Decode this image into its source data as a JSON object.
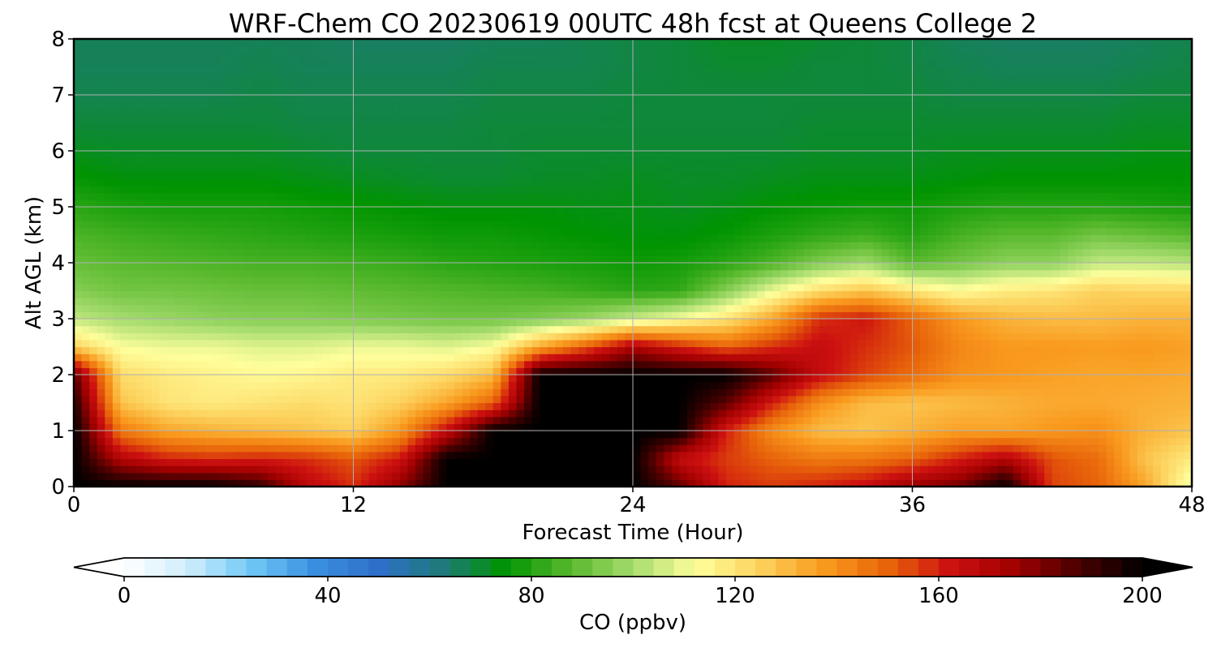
{
  "chart_data": {
    "type": "heatmap",
    "title": "WRF-Chem CO  20230619 00UTC 48h fcst at Queens College 2",
    "xlabel": "Forecast Time (Hour)",
    "ylabel": "Alt AGL (km)",
    "xlim": [
      0,
      48
    ],
    "ylim": [
      0,
      8
    ],
    "xticks": [
      0,
      12,
      24,
      36,
      48
    ],
    "yticks": [
      0,
      1,
      2,
      3,
      4,
      5,
      6,
      7,
      8
    ],
    "grid": true,
    "colorbar": {
      "label": "CO  (ppbv)",
      "range": [
        0,
        200
      ],
      "ticks": [
        0,
        40,
        80,
        120,
        160,
        200
      ],
      "extend": "both",
      "colors": [
        "#ffffff",
        "#cfeefc",
        "#6ec8f5",
        "#3b8fe0",
        "#2e6fc9",
        "#1f7a7a",
        "#009400",
        "#57b82c",
        "#a6dc6e",
        "#ffff9c",
        "#fcd15c",
        "#f99a1e",
        "#e8640a",
        "#cc1010",
        "#a00000",
        "#4a0000",
        "#000000"
      ]
    },
    "x": [
      0,
      2,
      4,
      6,
      8,
      10,
      12,
      14,
      16,
      18,
      20,
      22,
      24,
      26,
      28,
      30,
      32,
      34,
      36,
      38,
      40,
      42,
      44,
      46,
      48
    ],
    "y": [
      0,
      0.5,
      1,
      1.5,
      2,
      2.5,
      3,
      3.5,
      4,
      4.5,
      5,
      5.5,
      6,
      6.5,
      7,
      7.5,
      8
    ],
    "z": [
      [
        200,
        200,
        200,
        200,
        192,
        168,
        158,
        178,
        200,
        200,
        200,
        200,
        200,
        185,
        160,
        156,
        160,
        165,
        176,
        182,
        200,
        155,
        150,
        135,
        108
      ],
      [
        200,
        170,
        160,
        158,
        160,
        158,
        152,
        162,
        200,
        200,
        200,
        200,
        200,
        165,
        156,
        150,
        145,
        146,
        150,
        160,
        170,
        153,
        148,
        128,
        118
      ],
      [
        200,
        145,
        135,
        132,
        130,
        128,
        125,
        138,
        165,
        200,
        200,
        200,
        200,
        200,
        160,
        140,
        130,
        128,
        132,
        136,
        135,
        138,
        140,
        132,
        128
      ],
      [
        195,
        128,
        120,
        118,
        120,
        122,
        120,
        125,
        135,
        150,
        200,
        200,
        200,
        200,
        185,
        160,
        140,
        130,
        128,
        130,
        132,
        134,
        134,
        133,
        132
      ],
      [
        185,
        122,
        118,
        116,
        114,
        115,
        118,
        118,
        122,
        130,
        200,
        200,
        200,
        200,
        200,
        185,
        165,
        155,
        148,
        140,
        138,
        136,
        135,
        135,
        134
      ],
      [
        125,
        112,
        110,
        110,
        108,
        108,
        110,
        110,
        108,
        112,
        135,
        152,
        172,
        160,
        150,
        158,
        165,
        158,
        152,
        142,
        138,
        138,
        137,
        138,
        136
      ],
      [
        104,
        100,
        98,
        96,
        95,
        95,
        94,
        93,
        92,
        92,
        94,
        98,
        105,
        112,
        120,
        135,
        158,
        162,
        150,
        138,
        132,
        130,
        130,
        132,
        132
      ],
      [
        95,
        92,
        92,
        91,
        90,
        90,
        89,
        88,
        87,
        86,
        85,
        83,
        81,
        82,
        95,
        110,
        122,
        128,
        120,
        113,
        118,
        120,
        125,
        124,
        124
      ],
      [
        90,
        88,
        87,
        86,
        85,
        85,
        84,
        83,
        81,
        80,
        79,
        78,
        77,
        78,
        81,
        86,
        94,
        99,
        88,
        92,
        96,
        96,
        104,
        104,
        102
      ],
      [
        86,
        84,
        83,
        82,
        81,
        80,
        79,
        78,
        77,
        77,
        76,
        75,
        74,
        74,
        76,
        79,
        82,
        84,
        80,
        85,
        88,
        88,
        92,
        90,
        88
      ],
      [
        81,
        79,
        78,
        78,
        78,
        77,
        76,
        75,
        74,
        74,
        74,
        73,
        73,
        72,
        73,
        75,
        76,
        77,
        77,
        79,
        80,
        80,
        80,
        79,
        78
      ],
      [
        76,
        74,
        74,
        74,
        74,
        73,
        72,
        71,
        70,
        70,
        71,
        71,
        72,
        71,
        71,
        72,
        73,
        73,
        73,
        74,
        75,
        75,
        75,
        75,
        75
      ],
      [
        72,
        71,
        71,
        71,
        71,
        70,
        69,
        69,
        69,
        69,
        70,
        70,
        70,
        70,
        70,
        70,
        71,
        71,
        71,
        72,
        72,
        72,
        72,
        73,
        73
      ],
      [
        69,
        69,
        69,
        69,
        69,
        68,
        68,
        68,
        68,
        69,
        69,
        69,
        69,
        69,
        69,
        69,
        70,
        70,
        70,
        70,
        70,
        70,
        70,
        71,
        71
      ],
      [
        67,
        67,
        67,
        67,
        68,
        67,
        67,
        67,
        67,
        68,
        68,
        68,
        69,
        69,
        69,
        69,
        69,
        69,
        69,
        68,
        68,
        68,
        68,
        69,
        69
      ],
      [
        66,
        66,
        66,
        66,
        67,
        66,
        66,
        66,
        66,
        67,
        67,
        67,
        68,
        69,
        70,
        70,
        69,
        69,
        68,
        67,
        66,
        66,
        66,
        67,
        68
      ],
      [
        66,
        66,
        66,
        66,
        66,
        66,
        65,
        65,
        65,
        66,
        66,
        67,
        68,
        69,
        71,
        71,
        70,
        69,
        68,
        66,
        65,
        65,
        65,
        66,
        67
      ]
    ]
  }
}
